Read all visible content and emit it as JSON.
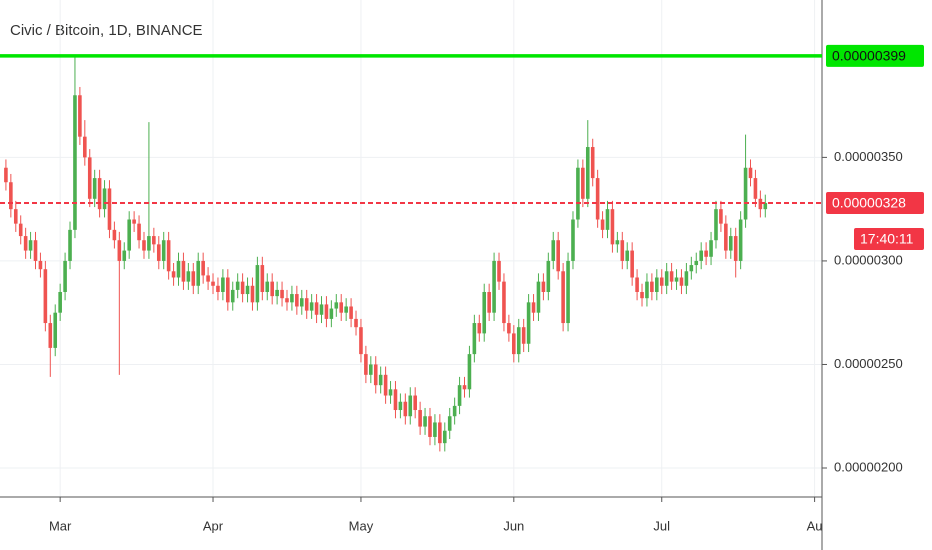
{
  "chart_data": {
    "type": "candlestick",
    "title": "Civic / Bitcoin, 1D, BINANCE",
    "up_color": "#4caf50",
    "down_color": "#ef5350",
    "open": [
      3.45e-07,
      3.38e-07,
      3.25e-07,
      3.18e-07,
      3.12e-07,
      3.05e-07,
      3.1e-07,
      3e-07,
      2.96e-07,
      2.7e-07,
      2.58e-07,
      2.75e-07,
      2.85e-07,
      3e-07,
      3.15e-07,
      3.8e-07,
      3.6e-07,
      3.5e-07,
      3.3e-07,
      3.4e-07,
      3.25e-07,
      3.35e-07,
      3.15e-07,
      3.1e-07,
      3e-07,
      3.05e-07,
      3.2e-07,
      3.18e-07,
      3.1e-07,
      3.05e-07,
      3.12e-07,
      3.08e-07,
      3e-07,
      3.1e-07,
      2.95e-07,
      2.92e-07,
      3e-07,
      2.9e-07,
      2.95e-07,
      2.88e-07,
      3e-07,
      2.93e-07,
      2.9e-07,
      2.88e-07,
      2.85e-07,
      2.92e-07,
      2.8e-07,
      2.86e-07,
      2.9e-07,
      2.84e-07,
      2.88e-07,
      2.8e-07,
      2.98e-07,
      2.85e-07,
      2.9e-07,
      2.83e-07,
      2.86e-07,
      2.82e-07,
      2.8e-07,
      2.84e-07,
      2.78e-07,
      2.82e-07,
      2.76e-07,
      2.8e-07,
      2.74e-07,
      2.79e-07,
      2.72e-07,
      2.77e-07,
      2.8e-07,
      2.75e-07,
      2.78e-07,
      2.72e-07,
      2.68e-07,
      2.55e-07,
      2.45e-07,
      2.5e-07,
      2.4e-07,
      2.45e-07,
      2.35e-07,
      2.38e-07,
      2.28e-07,
      2.32e-07,
      2.25e-07,
      2.35e-07,
      2.28e-07,
      2.2e-07,
      2.25e-07,
      2.15e-07,
      2.22e-07,
      2.12e-07,
      2.18e-07,
      2.25e-07,
      2.3e-07,
      2.4e-07,
      2.38e-07,
      2.55e-07,
      2.7e-07,
      2.65e-07,
      2.85e-07,
      2.75e-07,
      3e-07,
      2.9e-07,
      2.7e-07,
      2.65e-07,
      2.55e-07,
      2.68e-07,
      2.6e-07,
      2.8e-07,
      2.75e-07,
      2.9e-07,
      2.85e-07,
      3e-07,
      3.1e-07,
      2.95e-07,
      2.7e-07,
      3e-07,
      3.2e-07,
      3.45e-07,
      3.3e-07,
      3.55e-07,
      3.4e-07,
      3.2e-07,
      3.15e-07,
      3.25e-07,
      3.08e-07,
      3.1e-07,
      3e-07,
      3.05e-07,
      2.92e-07,
      2.85e-07,
      2.82e-07,
      2.9e-07,
      2.85e-07,
      2.92e-07,
      2.88e-07,
      2.95e-07,
      2.9e-07,
      2.92e-07,
      2.88e-07,
      2.95e-07,
      2.98e-07,
      3e-07,
      3.05e-07,
      3.02e-07,
      3.1e-07,
      3.25e-07,
      3.18e-07,
      3.05e-07,
      3.12e-07,
      3e-07,
      3.2e-07,
      3.45e-07,
      3.4e-07,
      3.3e-07,
      3.25e-07
    ],
    "high": [
      3.49e-07,
      3.42e-07,
      3.29e-07,
      3.22e-07,
      3.16e-07,
      3.14e-07,
      3.14e-07,
      3.04e-07,
      3e-07,
      2.74e-07,
      2.79e-07,
      2.89e-07,
      3.04e-07,
      3.19e-07,
      3.99e-07,
      3.84e-07,
      3.68e-07,
      3.54e-07,
      3.44e-07,
      3.44e-07,
      3.39e-07,
      3.39e-07,
      3.19e-07,
      3.14e-07,
      3.09e-07,
      3.24e-07,
      3.24e-07,
      3.22e-07,
      3.14e-07,
      3.67e-07,
      3.16e-07,
      3.12e-07,
      3.14e-07,
      3.14e-07,
      2.99e-07,
      3.04e-07,
      3.04e-07,
      2.99e-07,
      2.99e-07,
      3.04e-07,
      3.04e-07,
      2.97e-07,
      2.94e-07,
      2.92e-07,
      2.96e-07,
      2.96e-07,
      2.9e-07,
      2.94e-07,
      2.94e-07,
      2.92e-07,
      2.92e-07,
      3.02e-07,
      3.02e-07,
      2.94e-07,
      2.94e-07,
      2.9e-07,
      2.9e-07,
      2.86e-07,
      2.88e-07,
      2.88e-07,
      2.86e-07,
      2.86e-07,
      2.84e-07,
      2.84e-07,
      2.83e-07,
      2.83e-07,
      2.81e-07,
      2.84e-07,
      2.84e-07,
      2.82e-07,
      2.82e-07,
      2.76e-07,
      2.72e-07,
      2.59e-07,
      2.54e-07,
      2.54e-07,
      2.49e-07,
      2.49e-07,
      2.42e-07,
      2.42e-07,
      2.36e-07,
      2.36e-07,
      2.39e-07,
      2.39e-07,
      2.32e-07,
      2.29e-07,
      2.29e-07,
      2.26e-07,
      2.26e-07,
      2.22e-07,
      2.29e-07,
      2.34e-07,
      2.44e-07,
      2.44e-07,
      2.59e-07,
      2.74e-07,
      2.74e-07,
      2.89e-07,
      2.89e-07,
      3.04e-07,
      3.04e-07,
      2.94e-07,
      2.74e-07,
      2.69e-07,
      2.72e-07,
      2.72e-07,
      2.84e-07,
      2.84e-07,
      2.94e-07,
      2.94e-07,
      3.04e-07,
      3.14e-07,
      3.14e-07,
      2.99e-07,
      3.04e-07,
      3.24e-07,
      3.49e-07,
      3.49e-07,
      3.68e-07,
      3.59e-07,
      3.44e-07,
      3.24e-07,
      3.29e-07,
      3.29e-07,
      3.14e-07,
      3.14e-07,
      3.09e-07,
      3.09e-07,
      2.96e-07,
      2.89e-07,
      2.94e-07,
      2.94e-07,
      2.96e-07,
      2.96e-07,
      2.99e-07,
      2.99e-07,
      2.96e-07,
      2.96e-07,
      2.99e-07,
      3.02e-07,
      3.04e-07,
      3.09e-07,
      3.09e-07,
      3.14e-07,
      3.29e-07,
      3.29e-07,
      3.22e-07,
      3.16e-07,
      3.16e-07,
      3.24e-07,
      3.61e-07,
      3.49e-07,
      3.44e-07,
      3.34e-07,
      3.32e-07
    ],
    "low": [
      3.34e-07,
      3.21e-07,
      3.14e-07,
      3.08e-07,
      3.01e-07,
      3.01e-07,
      2.96e-07,
      2.92e-07,
      2.66e-07,
      2.44e-07,
      2.54e-07,
      2.71e-07,
      2.81e-07,
      2.96e-07,
      3.11e-07,
      3.56e-07,
      3.46e-07,
      3.26e-07,
      3.26e-07,
      3.21e-07,
      3.21e-07,
      3.11e-07,
      3.06e-07,
      2.45e-07,
      2.96e-07,
      3.01e-07,
      3.14e-07,
      3.06e-07,
      3.01e-07,
      3.01e-07,
      3.04e-07,
      2.96e-07,
      2.96e-07,
      2.91e-07,
      2.88e-07,
      2.88e-07,
      2.86e-07,
      2.86e-07,
      2.84e-07,
      2.84e-07,
      2.89e-07,
      2.86e-07,
      2.84e-07,
      2.81e-07,
      2.81e-07,
      2.76e-07,
      2.76e-07,
      2.82e-07,
      2.8e-07,
      2.8e-07,
      2.76e-07,
      2.76e-07,
      2.81e-07,
      2.81e-07,
      2.79e-07,
      2.79e-07,
      2.78e-07,
      2.76e-07,
      2.76e-07,
      2.74e-07,
      2.74e-07,
      2.72e-07,
      2.72e-07,
      2.7e-07,
      2.7e-07,
      2.68e-07,
      2.68e-07,
      2.73e-07,
      2.71e-07,
      2.71e-07,
      2.68e-07,
      2.64e-07,
      2.51e-07,
      2.41e-07,
      2.41e-07,
      2.36e-07,
      2.36e-07,
      2.31e-07,
      2.31e-07,
      2.24e-07,
      2.24e-07,
      2.21e-07,
      2.21e-07,
      2.24e-07,
      2.16e-07,
      2.16e-07,
      2.11e-07,
      2.11e-07,
      2.08e-07,
      2.08e-07,
      2.14e-07,
      2.21e-07,
      2.26e-07,
      2.34e-07,
      2.34e-07,
      2.51e-07,
      2.61e-07,
      2.61e-07,
      2.71e-07,
      2.71e-07,
      2.86e-07,
      2.66e-07,
      2.61e-07,
      2.51e-07,
      2.51e-07,
      2.56e-07,
      2.56e-07,
      2.71e-07,
      2.71e-07,
      2.81e-07,
      2.81e-07,
      2.96e-07,
      2.91e-07,
      2.66e-07,
      2.66e-07,
      2.96e-07,
      3.16e-07,
      3.26e-07,
      3.26e-07,
      3.36e-07,
      3.16e-07,
      3.11e-07,
      3.11e-07,
      3.04e-07,
      3.04e-07,
      2.96e-07,
      2.96e-07,
      2.88e-07,
      2.81e-07,
      2.78e-07,
      2.78e-07,
      2.81e-07,
      2.81e-07,
      2.84e-07,
      2.84e-07,
      2.86e-07,
      2.86e-07,
      2.84e-07,
      2.84e-07,
      2.91e-07,
      2.94e-07,
      2.96e-07,
      2.98e-07,
      2.98e-07,
      3.06e-07,
      3.14e-07,
      3.01e-07,
      3.01e-07,
      2.92e-07,
      2.96e-07,
      3.16e-07,
      3.36e-07,
      3.26e-07,
      3.21e-07,
      3.21e-07
    ],
    "close": [
      3.38e-07,
      3.25e-07,
      3.18e-07,
      3.12e-07,
      3.05e-07,
      3.1e-07,
      3e-07,
      2.96e-07,
      2.7e-07,
      2.58e-07,
      2.75e-07,
      2.85e-07,
      3e-07,
      3.15e-07,
      3.8e-07,
      3.6e-07,
      3.5e-07,
      3.3e-07,
      3.4e-07,
      3.25e-07,
      3.35e-07,
      3.15e-07,
      3.1e-07,
      3e-07,
      3.05e-07,
      3.2e-07,
      3.18e-07,
      3.1e-07,
      3.05e-07,
      3.12e-07,
      3.08e-07,
      3e-07,
      3.1e-07,
      2.95e-07,
      2.92e-07,
      3e-07,
      2.9e-07,
      2.95e-07,
      2.88e-07,
      3e-07,
      2.93e-07,
      2.9e-07,
      2.88e-07,
      2.85e-07,
      2.92e-07,
      2.8e-07,
      2.86e-07,
      2.9e-07,
      2.84e-07,
      2.88e-07,
      2.8e-07,
      2.98e-07,
      2.85e-07,
      2.9e-07,
      2.83e-07,
      2.86e-07,
      2.82e-07,
      2.8e-07,
      2.84e-07,
      2.78e-07,
      2.82e-07,
      2.76e-07,
      2.8e-07,
      2.74e-07,
      2.79e-07,
      2.72e-07,
      2.77e-07,
      2.8e-07,
      2.75e-07,
      2.78e-07,
      2.72e-07,
      2.68e-07,
      2.55e-07,
      2.45e-07,
      2.5e-07,
      2.4e-07,
      2.45e-07,
      2.35e-07,
      2.38e-07,
      2.28e-07,
      2.32e-07,
      2.25e-07,
      2.35e-07,
      2.28e-07,
      2.2e-07,
      2.25e-07,
      2.15e-07,
      2.22e-07,
      2.12e-07,
      2.18e-07,
      2.25e-07,
      2.3e-07,
      2.4e-07,
      2.38e-07,
      2.55e-07,
      2.7e-07,
      2.65e-07,
      2.85e-07,
      2.75e-07,
      3e-07,
      2.9e-07,
      2.7e-07,
      2.65e-07,
      2.55e-07,
      2.68e-07,
      2.6e-07,
      2.8e-07,
      2.75e-07,
      2.9e-07,
      2.85e-07,
      3e-07,
      3.1e-07,
      2.95e-07,
      2.7e-07,
      3e-07,
      3.2e-07,
      3.45e-07,
      3.3e-07,
      3.55e-07,
      3.4e-07,
      3.2e-07,
      3.15e-07,
      3.25e-07,
      3.08e-07,
      3.1e-07,
      3e-07,
      3.05e-07,
      2.92e-07,
      2.85e-07,
      2.82e-07,
      2.9e-07,
      2.85e-07,
      2.92e-07,
      2.88e-07,
      2.95e-07,
      2.9e-07,
      2.92e-07,
      2.88e-07,
      2.95e-07,
      2.98e-07,
      3e-07,
      3.05e-07,
      3.02e-07,
      3.1e-07,
      3.25e-07,
      3.18e-07,
      3.05e-07,
      3.12e-07,
      3e-07,
      3.2e-07,
      3.45e-07,
      3.4e-07,
      3.3e-07,
      3.25e-07,
      3.28e-07
    ],
    "xlim": [
      -1.2,
      165.5
    ],
    "xticks": [
      {
        "value": 11,
        "label": "Mar"
      },
      {
        "value": 42,
        "label": "Apr"
      },
      {
        "value": 72,
        "label": "May"
      },
      {
        "value": 103,
        "label": "Jun"
      },
      {
        "value": 133,
        "label": "Jul"
      },
      {
        "value": 164,
        "label": "Au"
      }
    ],
    "ylim": [
      1.86e-07,
      4.26e-07
    ],
    "yticks": [
      {
        "value": 2e-07,
        "label": "0.00000200"
      },
      {
        "value": 2.5e-07,
        "label": "0.00000250"
      },
      {
        "value": 3e-07,
        "label": "0.00000300"
      },
      {
        "value": 3.5e-07,
        "label": "0.00000350"
      }
    ],
    "grid": true,
    "lines": [
      {
        "value": 3.99e-07,
        "label": "0.00000399",
        "color": "#00e600",
        "style": "solid"
      },
      {
        "value": 3.28e-07,
        "label": "0.00000328",
        "color": "#f23645",
        "style": "dashed"
      }
    ],
    "countdown": "17:40:11"
  }
}
